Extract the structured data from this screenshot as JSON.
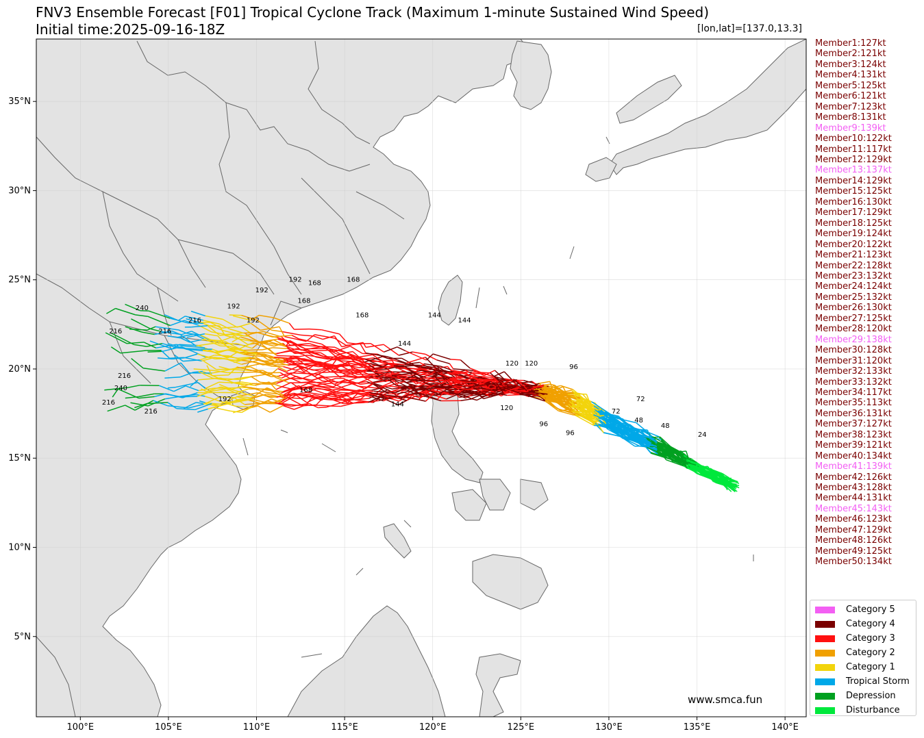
{
  "title": "FNV3 Ensemble Forecast [F01] Tropical Cyclone Track (Maximum 1-minute Sustained Wind Speed)",
  "initial_time": "Initial time:2025-09-16-18Z",
  "position": "[lon,lat]=[137.0,13.3]",
  "credit": "www.smca.fun",
  "map": {
    "extent": {
      "lon": [
        97.5,
        141.2
      ],
      "lat": [
        0.5,
        38.5
      ]
    },
    "lon_ticks": [
      "100°E",
      "105°E",
      "110°E",
      "115°E",
      "120°E",
      "125°E",
      "130°E",
      "135°E",
      "140°E"
    ],
    "lat_ticks": [
      "5°N",
      "10°N",
      "15°N",
      "20°N",
      "25°N",
      "30°N",
      "35°N"
    ],
    "land_color": "#e3e3e3",
    "border_color": "#666666"
  },
  "categories": [
    {
      "name": "Category 5",
      "color": "#f35ff3"
    },
    {
      "name": "Category 4",
      "color": "#7a0000"
    },
    {
      "name": "Category 3",
      "color": "#ff1010"
    },
    {
      "name": "Category 2",
      "color": "#f0a000"
    },
    {
      "name": "Category 1",
      "color": "#f2d40c"
    },
    {
      "name": "Tropical Storm",
      "color": "#00a8e8"
    },
    {
      "name": "Depression",
      "color": "#00a020"
    },
    {
      "name": "Disturbance",
      "color": "#00e83c"
    }
  ],
  "members": [
    {
      "label": "Member1:127kt",
      "cat5": false
    },
    {
      "label": "Member2:121kt",
      "cat5": false
    },
    {
      "label": "Member3:124kt",
      "cat5": false
    },
    {
      "label": "Member4:131kt",
      "cat5": false
    },
    {
      "label": "Member5:125kt",
      "cat5": false
    },
    {
      "label": "Member6:121kt",
      "cat5": false
    },
    {
      "label": "Member7:123kt",
      "cat5": false
    },
    {
      "label": "Member8:131kt",
      "cat5": false
    },
    {
      "label": "Member9:139kt",
      "cat5": true
    },
    {
      "label": "Member10:122kt",
      "cat5": false
    },
    {
      "label": "Member11:117kt",
      "cat5": false
    },
    {
      "label": "Member12:129kt",
      "cat5": false
    },
    {
      "label": "Member13:137kt",
      "cat5": true
    },
    {
      "label": "Member14:129kt",
      "cat5": false
    },
    {
      "label": "Member15:125kt",
      "cat5": false
    },
    {
      "label": "Member16:130kt",
      "cat5": false
    },
    {
      "label": "Member17:129kt",
      "cat5": false
    },
    {
      "label": "Member18:125kt",
      "cat5": false
    },
    {
      "label": "Member19:124kt",
      "cat5": false
    },
    {
      "label": "Member20:122kt",
      "cat5": false
    },
    {
      "label": "Member21:123kt",
      "cat5": false
    },
    {
      "label": "Member22:128kt",
      "cat5": false
    },
    {
      "label": "Member23:132kt",
      "cat5": false
    },
    {
      "label": "Member24:124kt",
      "cat5": false
    },
    {
      "label": "Member25:132kt",
      "cat5": false
    },
    {
      "label": "Member26:130kt",
      "cat5": false
    },
    {
      "label": "Member27:125kt",
      "cat5": false
    },
    {
      "label": "Member28:120kt",
      "cat5": false
    },
    {
      "label": "Member29:138kt",
      "cat5": true
    },
    {
      "label": "Member30:128kt",
      "cat5": false
    },
    {
      "label": "Member31:120kt",
      "cat5": false
    },
    {
      "label": "Member32:133kt",
      "cat5": false
    },
    {
      "label": "Member33:132kt",
      "cat5": false
    },
    {
      "label": "Member34:117kt",
      "cat5": false
    },
    {
      "label": "Member35:113kt",
      "cat5": false
    },
    {
      "label": "Member36:131kt",
      "cat5": false
    },
    {
      "label": "Member37:127kt",
      "cat5": false
    },
    {
      "label": "Member38:123kt",
      "cat5": false
    },
    {
      "label": "Member39:121kt",
      "cat5": false
    },
    {
      "label": "Member40:134kt",
      "cat5": false
    },
    {
      "label": "Member41:139kt",
      "cat5": true
    },
    {
      "label": "Member42:126kt",
      "cat5": false
    },
    {
      "label": "Member43:128kt",
      "cat5": false
    },
    {
      "label": "Member44:131kt",
      "cat5": false
    },
    {
      "label": "Member45:143kt",
      "cat5": true
    },
    {
      "label": "Member46:123kt",
      "cat5": false
    },
    {
      "label": "Member47:129kt",
      "cat5": false
    },
    {
      "label": "Member48:126kt",
      "cat5": false
    },
    {
      "label": "Member49:125kt",
      "cat5": false
    },
    {
      "label": "Member50:134kt",
      "cat5": false
    }
  ],
  "member_colors": {
    "normal": "#7a0000",
    "cat5": "#f35ff3"
  },
  "hour_labels": [
    {
      "text": "24",
      "lon": 135.3,
      "lat": 16.2
    },
    {
      "text": "48",
      "lon": 133.2,
      "lat": 16.7
    },
    {
      "text": "48",
      "lon": 131.7,
      "lat": 17.0
    },
    {
      "text": "72",
      "lon": 131.8,
      "lat": 18.2
    },
    {
      "text": "72",
      "lon": 130.4,
      "lat": 17.5
    },
    {
      "text": "96",
      "lon": 128.0,
      "lat": 20.0
    },
    {
      "text": "96",
      "lon": 126.3,
      "lat": 16.8
    },
    {
      "text": "96",
      "lon": 127.8,
      "lat": 16.3
    },
    {
      "text": "120",
      "lon": 124.5,
      "lat": 20.2
    },
    {
      "text": "120",
      "lon": 125.6,
      "lat": 20.2
    },
    {
      "text": "120",
      "lon": 124.2,
      "lat": 17.7
    },
    {
      "text": "144",
      "lon": 121.8,
      "lat": 22.6
    },
    {
      "text": "144",
      "lon": 120.1,
      "lat": 22.9
    },
    {
      "text": "144",
      "lon": 118.4,
      "lat": 21.3
    },
    {
      "text": "144",
      "lon": 118.0,
      "lat": 17.9
    },
    {
      "text": "168",
      "lon": 116.0,
      "lat": 22.9
    },
    {
      "text": "168",
      "lon": 115.5,
      "lat": 24.9
    },
    {
      "text": "168",
      "lon": 112.7,
      "lat": 23.7
    },
    {
      "text": "168",
      "lon": 113.3,
      "lat": 24.7
    },
    {
      "text": "168",
      "lon": 112.8,
      "lat": 18.7
    },
    {
      "text": "192",
      "lon": 112.2,
      "lat": 24.9
    },
    {
      "text": "192",
      "lon": 110.3,
      "lat": 24.3
    },
    {
      "text": "192",
      "lon": 108.7,
      "lat": 23.4
    },
    {
      "text": "192",
      "lon": 109.8,
      "lat": 22.6
    },
    {
      "text": "192",
      "lon": 108.2,
      "lat": 18.2
    },
    {
      "text": "216",
      "lon": 102.0,
      "lat": 22.0
    },
    {
      "text": "216",
      "lon": 106.5,
      "lat": 22.6
    },
    {
      "text": "216",
      "lon": 104.8,
      "lat": 22.0
    },
    {
      "text": "216",
      "lon": 102.5,
      "lat": 19.5
    },
    {
      "text": "216",
      "lon": 101.6,
      "lat": 18.0
    },
    {
      "text": "216",
      "lon": 104.0,
      "lat": 17.5
    },
    {
      "text": "240",
      "lon": 103.5,
      "lat": 23.3
    },
    {
      "text": "240",
      "lon": 102.3,
      "lat": 18.8
    }
  ]
}
